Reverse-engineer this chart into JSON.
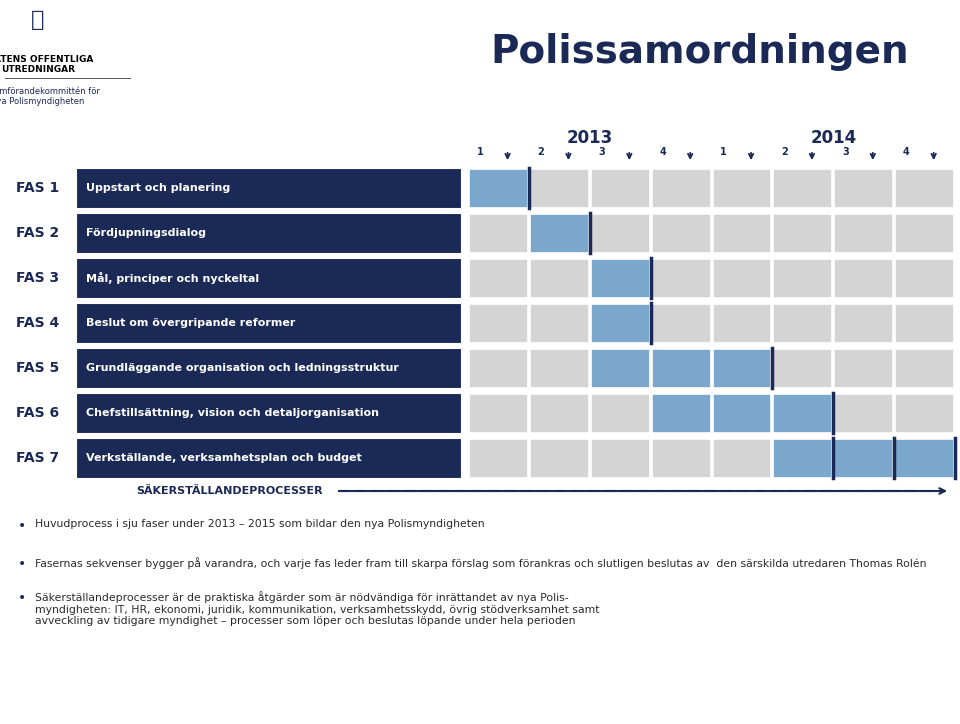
{
  "title": "Polissamordningen",
  "title_color": "#1a2955",
  "background_color": "#ffffff",
  "logo_text_line1": "STATENS OFFENTLIGA",
  "logo_text_line2": "UTREDNINGAR",
  "logo_subtext": "Genomförandekommittén för\nnya Polismyndigheten",
  "fas_labels": [
    "FAS 1",
    "FAS 2",
    "FAS 3",
    "FAS 4",
    "FAS 5",
    "FAS 6",
    "FAS 7"
  ],
  "fas_descriptions": [
    "Uppstart och planering",
    "Fördjupningsdialog",
    "Mål, principer och nyckeltal",
    "Beslut om övergripande reformer",
    "Grundläggande organisation och ledningsstruktur",
    "Chefstillsättning, vision och detaljorganisation",
    "Verkställande, verksamhetsplan och budget"
  ],
  "dark_blue": "#1a2955",
  "light_blue": "#7ba7cc",
  "light_gray": "#d4d4d4",
  "white": "#ffffff",
  "sakerstellande_label": "SÄKERSTÄLLANDEPROCESSER",
  "bullet_points": [
    "Huvudprocess i sju faser under 2013 – 2015 som bildar den nya Polismyndigheten",
    "Fasernas sekvenser bygger på varandra, och varje fas leder fram till skarpa förslag som förankras och slutligen beslutas av  den särskilda utredaren Thomas Rolén",
    "Säkerställandeprocesser är de praktiska åtgärder som är nödvändiga för inrättandet av nya Polis-\nmyndigheten: IT, HR, ekonomi, juridik, kommunikation, verksamhetsskydd, övrig stödverksamhet samt\navveckling av tidigare myndighet – processer som löper och beslutas löpande under hela perioden"
  ],
  "gantt_data": [
    {
      "fas_idx": 0,
      "active_cols": [
        0
      ],
      "milestone_cols": [
        1
      ]
    },
    {
      "fas_idx": 1,
      "active_cols": [
        1
      ],
      "milestone_cols": [
        2
      ]
    },
    {
      "fas_idx": 2,
      "active_cols": [
        2
      ],
      "milestone_cols": [
        3
      ]
    },
    {
      "fas_idx": 3,
      "active_cols": [
        2
      ],
      "milestone_cols": [
        3
      ]
    },
    {
      "fas_idx": 4,
      "active_cols": [
        2,
        3,
        4
      ],
      "milestone_cols": [
        5
      ]
    },
    {
      "fas_idx": 5,
      "active_cols": [
        3,
        4,
        5
      ],
      "milestone_cols": [
        6
      ]
    },
    {
      "fas_idx": 6,
      "active_cols": [
        5,
        6,
        7
      ],
      "milestone_cols": [
        6,
        7,
        8
      ]
    }
  ]
}
